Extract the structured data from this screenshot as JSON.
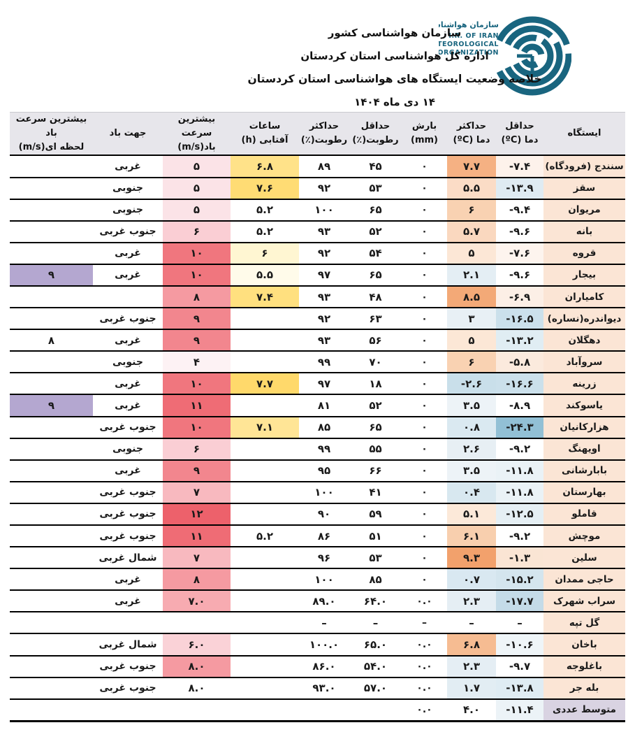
{
  "header": {
    "org_line": "سازمان هواشناسی کشور",
    "dept_line": "اداره کل هواشناسی استان کردستان",
    "title_line": "خلاصه وضعیت ایستگاه های هواشناسی استان کردستان",
    "date_line": "۱۴ دی ماه ۱۴۰۴",
    "logo": {
      "fa_name": "سازمان هواشناسی کشور",
      "en_line1": "I.R. OF IRAN",
      "en_line2": "METEOROLOGICAL",
      "en_line3": "ORGANIZATION",
      "color": "#19657F"
    }
  },
  "table": {
    "columns": [
      {
        "l1": "ایستگاه",
        "l2": ""
      },
      {
        "l1": "حداقل",
        "l2": "دما (ºC)"
      },
      {
        "l1": "حداکثر",
        "l2": "دما (ºC)"
      },
      {
        "l1": "بارش",
        "l2": "(mm)"
      },
      {
        "l1": "حداقل",
        "l2": "رطوبت(٪)"
      },
      {
        "l1": "حداکثر",
        "l2": "رطوبت(٪)"
      },
      {
        "l1": "ساعات",
        "l2": "آفتابی (h)"
      },
      {
        "l1": "بیشترین سرعت",
        "l2": "باد(m/s)"
      },
      {
        "l1": "جهت باد",
        "l2": ""
      },
      {
        "l1": "بیشترین سرعت باد",
        "l2": "لحظه ای(m/s)"
      }
    ],
    "colors": {
      "station_bg": "#FBE5D5",
      "header_bg": "#E7E6EB",
      "average_label_bg": "#D9D3E2",
      "gust_highlight": "#B4A7D0",
      "row_border": "#000000"
    },
    "rows": [
      {
        "station": "سنندج (فرودگاه)",
        "tmin": "-۷.۴",
        "tmin_bg": "#FDF2EB",
        "tmax": "۷.۷",
        "tmax_bg": "#F5B183",
        "precip": "۰",
        "hmin": "۴۵",
        "hmax": "۸۹",
        "sun": "۶.۸",
        "sun_bg": "#FFE289",
        "wind": "۵",
        "wind_bg": "#FBE3E7",
        "dir": "غربی",
        "gust": "",
        "gust_bg": ""
      },
      {
        "station": "سقز",
        "tmin": "-۱۳.۹",
        "tmin_bg": "#DFEBF2",
        "tmax": "۵.۵",
        "tmax_bg": "#FBDCC6",
        "precip": "۰",
        "hmin": "۵۳",
        "hmax": "۹۲",
        "sun": "۷.۶",
        "sun_bg": "#FFDC74",
        "wind": "۵",
        "wind_bg": "#FBE3E7",
        "dir": "جنوبی",
        "gust": "",
        "gust_bg": ""
      },
      {
        "station": "مریوان",
        "tmin": "-۹.۴",
        "tmin_bg": "",
        "tmax": "۶",
        "tmax_bg": "#F9D2B2",
        "precip": "۰",
        "hmin": "۶۵",
        "hmax": "۱۰۰",
        "sun": "۵.۲",
        "sun_bg": "",
        "wind": "۵",
        "wind_bg": "#FBE3E7",
        "dir": "جنوبی",
        "gust": "",
        "gust_bg": ""
      },
      {
        "station": "بانه",
        "tmin": "-۹.۶",
        "tmin_bg": "",
        "tmax": "۵.۷",
        "tmax_bg": "#FAD8BF",
        "precip": "۰",
        "hmin": "۵۲",
        "hmax": "۹۳",
        "sun": "۵.۲",
        "sun_bg": "",
        "wind": "۶",
        "wind_bg": "#FACED4",
        "dir": "جنوب غربی",
        "gust": "",
        "gust_bg": ""
      },
      {
        "station": "قروه",
        "tmin": "-۷.۶",
        "tmin_bg": "#FDF4EE",
        "tmax": "۵",
        "tmax_bg": "#FCE7D6",
        "precip": "۰",
        "hmin": "۵۴",
        "hmax": "۹۲",
        "sun": "۶",
        "sun_bg": "#FFF6D2",
        "wind": "۱۰",
        "wind_bg": "#F0767E",
        "dir": "غربی",
        "gust": "",
        "gust_bg": ""
      },
      {
        "station": "بیجار",
        "tmin": "-۹.۶",
        "tmin_bg": "",
        "tmax": "۲.۱",
        "tmax_bg": "#E4EEF4",
        "precip": "۰",
        "hmin": "۶۵",
        "hmax": "۹۷",
        "sun": "۵.۵",
        "sun_bg": "#FFFBEA",
        "wind": "۱۰",
        "wind_bg": "#F0767E",
        "dir": "غربی",
        "gust": "۹",
        "gust_bg": "#B4A7D0"
      },
      {
        "station": "کامیاران",
        "tmin": "-۶.۹",
        "tmin_bg": "#FCEFE6",
        "tmax": "۸.۵",
        "tmax_bg": "#F3A977",
        "precip": "۰",
        "hmin": "۴۸",
        "hmax": "۹۳",
        "sun": "۷.۴",
        "sun_bg": "#FFE07F",
        "wind": "۸",
        "wind_bg": "#F59AA1",
        "dir": "",
        "gust": "",
        "gust_bg": ""
      },
      {
        "station": "دیواندره(نساره)",
        "tmin": "-۱۶.۵",
        "tmin_bg": "#CBE0EB",
        "tmax": "۳",
        "tmax_bg": "#E8F0F5",
        "precip": "۰",
        "hmin": "۶۳",
        "hmax": "۹۲",
        "sun": "",
        "sun_bg": "",
        "wind": "۹",
        "wind_bg": "#F2868E",
        "dir": "جنوب غربی",
        "gust": "",
        "gust_bg": ""
      },
      {
        "station": "دهگلان",
        "tmin": "-۱۳.۲",
        "tmin_bg": "#E0EDF3",
        "tmax": "۵",
        "tmax_bg": "#FCE7D6",
        "precip": "۰",
        "hmin": "۵۶",
        "hmax": "۹۳",
        "sun": "",
        "sun_bg": "",
        "wind": "۹",
        "wind_bg": "#F2868E",
        "dir": "غربی",
        "gust": "۸",
        "gust_bg": ""
      },
      {
        "station": "سروآباد",
        "tmin": "-۵.۸",
        "tmin_bg": "#FBEADD",
        "tmax": "۶",
        "tmax_bg": "#F9D2B2",
        "precip": "۰",
        "hmin": "۷۰",
        "hmax": "۹۹",
        "sun": "",
        "sun_bg": "",
        "wind": "۴",
        "wind_bg": "#FDF2F4",
        "dir": "جنوبی",
        "gust": "",
        "gust_bg": ""
      },
      {
        "station": "زرینه",
        "tmin": "-۱۶.۶",
        "tmin_bg": "#CBE0EB",
        "tmax": "-۲.۶",
        "tmax_bg": "#C9DFEA",
        "precip": "۰",
        "hmin": "۱۸",
        "hmax": "۹۷",
        "sun": "۷.۷",
        "sun_bg": "#FFD96B",
        "wind": "۱۰",
        "wind_bg": "#F0767E",
        "dir": "غربی",
        "gust": "",
        "gust_bg": ""
      },
      {
        "station": "یاسوکند",
        "tmin": "-۸.۹",
        "tmin_bg": "",
        "tmax": "۳.۵",
        "tmax_bg": "#EDF3F7",
        "precip": "۰",
        "hmin": "۵۲",
        "hmax": "۸۱",
        "sun": "",
        "sun_bg": "",
        "wind": "۱۱",
        "wind_bg": "#EF6C75",
        "dir": "غربی",
        "gust": "۹",
        "gust_bg": "#B4A7D0"
      },
      {
        "station": "هزارکانیان",
        "tmin": "-۲۴.۳",
        "tmin_bg": "#92C0D5",
        "tmax": "۰.۸",
        "tmax_bg": "#DAE9F1",
        "precip": "۰",
        "hmin": "۶۵",
        "hmax": "۸۵",
        "sun": "۷.۱",
        "sun_bg": "#FFE596",
        "wind": "۱۰",
        "wind_bg": "#F0767E",
        "dir": "جنوب غربی",
        "gust": "",
        "gust_bg": ""
      },
      {
        "station": "اویهنگ",
        "tmin": "-۹.۲",
        "tmin_bg": "",
        "tmax": "۲.۶",
        "tmax_bg": "#E7EFF4",
        "precip": "۰",
        "hmin": "۵۵",
        "hmax": "۹۹",
        "sun": "",
        "sun_bg": "",
        "wind": "۶",
        "wind_bg": "#FACED4",
        "dir": "جنوبی",
        "gust": "",
        "gust_bg": ""
      },
      {
        "station": "بابارشانی",
        "tmin": "-۱۱.۸",
        "tmin_bg": "#EAF2F6",
        "tmax": "۳.۵",
        "tmax_bg": "#EDF3F7",
        "precip": "۰",
        "hmin": "۶۶",
        "hmax": "۹۵",
        "sun": "",
        "sun_bg": "",
        "wind": "۹",
        "wind_bg": "#F2868E",
        "dir": "غربی",
        "gust": "",
        "gust_bg": ""
      },
      {
        "station": "بهارستان",
        "tmin": "-۱۱.۸",
        "tmin_bg": "#EAF2F6",
        "tmax": "۰.۴",
        "tmax_bg": "#D8E8F0",
        "precip": "۰",
        "hmin": "۴۱",
        "hmax": "۱۰۰",
        "sun": "",
        "sun_bg": "",
        "wind": "۷",
        "wind_bg": "#F8B9BF",
        "dir": "جنوب غربی",
        "gust": "",
        "gust_bg": ""
      },
      {
        "station": "قاملو",
        "tmin": "-۱۲.۵",
        "tmin_bg": "#E5EFF4",
        "tmax": "۵.۱",
        "tmax_bg": "#FCE9D9",
        "precip": "۰",
        "hmin": "۵۹",
        "hmax": "۹۰",
        "sun": "",
        "sun_bg": "",
        "wind": "۱۲",
        "wind_bg": "#ED616B",
        "dir": "جنوب غربی",
        "gust": "",
        "gust_bg": ""
      },
      {
        "station": "موچش",
        "tmin": "-۹.۲",
        "tmin_bg": "",
        "tmax": "۶.۱",
        "tmax_bg": "#F8CFAE",
        "precip": "۰",
        "hmin": "۵۱",
        "hmax": "۸۶",
        "sun": "۵.۲",
        "sun_bg": "",
        "wind": "۱۱",
        "wind_bg": "#EF6C75",
        "dir": "جنوب غربی",
        "gust": "",
        "gust_bg": ""
      },
      {
        "station": "سلین",
        "tmin": "-۱.۳",
        "tmin_bg": "#FAE5D4",
        "tmax": "۹.۳",
        "tmax_bg": "#F2A16C",
        "precip": "۰",
        "hmin": "۵۳",
        "hmax": "۹۶",
        "sun": "",
        "sun_bg": "",
        "wind": "۷",
        "wind_bg": "#F8B9BF",
        "dir": "شمال غربی",
        "gust": "",
        "gust_bg": ""
      },
      {
        "station": "حاجی ممدان",
        "tmin": "-۱۵.۲",
        "tmin_bg": "#D4E5EE",
        "tmax": "۰.۷",
        "tmax_bg": "#D9E8F1",
        "precip": "۰",
        "hmin": "۸۵",
        "hmax": "۱۰۰",
        "sun": "",
        "sun_bg": "",
        "wind": "۸",
        "wind_bg": "#F59AA1",
        "dir": "غربی",
        "gust": "",
        "gust_bg": ""
      },
      {
        "station": "سراب شهرک",
        "tmin": "-۱۷.۷",
        "tmin_bg": "#C4DBE8",
        "tmax": "۲.۳",
        "tmax_bg": "#E5EEF4",
        "precip": "۰.۰",
        "hmin": "۶۴.۰",
        "hmax": "۸۹.۰",
        "sun": "",
        "sun_bg": "",
        "wind": "۷.۰",
        "wind_bg": "#F7ABB1",
        "dir": "غربی",
        "gust": "",
        "gust_bg": ""
      },
      {
        "station": "گل تپه",
        "tmin": "–",
        "tmin_bg": "",
        "tmax": "–",
        "tmax_bg": "",
        "precip": "–",
        "hmin": "–",
        "hmax": "–",
        "sun": "",
        "sun_bg": "",
        "wind": "",
        "wind_bg": "",
        "dir": "",
        "gust": "",
        "gust_bg": ""
      },
      {
        "station": "باخان",
        "tmin": "-۱۰.۶",
        "tmin_bg": "#EFF5F8",
        "tmax": "۶.۸",
        "tmax_bg": "#F6BC92",
        "precip": "۰.۰",
        "hmin": "۶۵.۰",
        "hmax": "۱۰۰.۰",
        "sun": "",
        "sun_bg": "",
        "wind": "۶.۰",
        "wind_bg": "#FAD2D7",
        "dir": "شمال غربی",
        "gust": "",
        "gust_bg": ""
      },
      {
        "station": "باغلوجه",
        "tmin": "-۹.۷",
        "tmin_bg": "",
        "tmax": "۲.۳",
        "tmax_bg": "#E5EEF4",
        "precip": "۰.۰",
        "hmin": "۵۴.۰",
        "hmax": "۸۶.۰",
        "sun": "",
        "sun_bg": "",
        "wind": "۸.۰",
        "wind_bg": "#F59AA1",
        "dir": "جنوب غربی",
        "gust": "",
        "gust_bg": ""
      },
      {
        "station": "بله جر",
        "tmin": "-۱۳.۸",
        "tmin_bg": "#DFECF3",
        "tmax": "۱.۷",
        "tmax_bg": "#E2EDF3",
        "precip": "۰.۰",
        "hmin": "۵۷.۰",
        "hmax": "۹۳.۰",
        "sun": "",
        "sun_bg": "",
        "wind": "۸.۰",
        "wind_bg": "",
        "dir": "جنوب غربی",
        "gust": "",
        "gust_bg": ""
      },
      {
        "station": "متوسط عددی",
        "station_bg": "#D9D3E2",
        "tmin": "-۱۱.۴",
        "tmin_bg": "#ECF3F7",
        "tmax": "۴.۰",
        "tmax_bg": "",
        "precip": "۰.۰",
        "hmin": "",
        "hmax": "",
        "sun": "",
        "sun_bg": "",
        "wind": "",
        "wind_bg": "",
        "dir": "",
        "gust": "",
        "gust_bg": ""
      }
    ]
  }
}
